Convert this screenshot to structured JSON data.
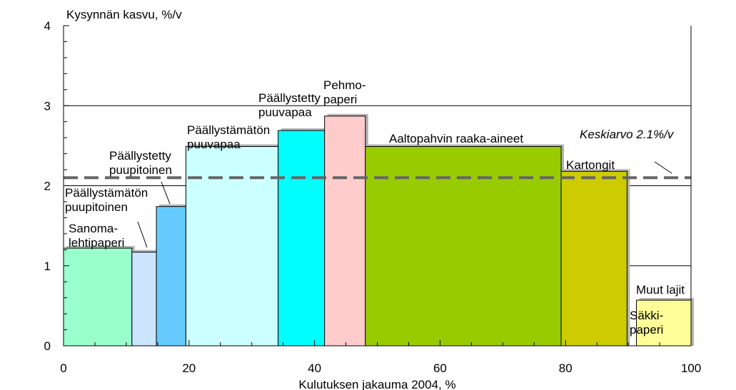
{
  "chart_data": {
    "type": "bar",
    "subtype": "variable-width-bar",
    "title": "",
    "ylabel": "Kysynnän kasvu, %/v",
    "xlabel": "Kulutuksen jakauma 2004, %",
    "xlim": [
      0,
      100
    ],
    "ylim": [
      0,
      4
    ],
    "xticks": [
      "0",
      "20",
      "40",
      "60",
      "80",
      "100"
    ],
    "yticks": [
      "0",
      "1",
      "2",
      "3",
      "4"
    ],
    "gridlines_y": [
      1,
      2,
      3
    ],
    "bars": [
      {
        "label": "Sanoma-\nlehtipaperi",
        "x0": 0,
        "x1": 10.9,
        "value": 1.22,
        "color": "#99ffcc"
      },
      {
        "label": "Päällystämätön\npuupitoinen",
        "x0": 10.9,
        "x1": 14.8,
        "value": 1.17,
        "color": "#cce5ff"
      },
      {
        "label": "Päällystetty\npuupitoinen",
        "x0": 14.8,
        "x1": 19.5,
        "value": 1.74,
        "color": "#66ccff"
      },
      {
        "label": "Päällystämätön\npuuvapaa",
        "x0": 19.5,
        "x1": 34.2,
        "value": 2.49,
        "color": "#ccffff"
      },
      {
        "label": "Päällystetty\npuuvapaa",
        "x0": 34.2,
        "x1": 41.6,
        "value": 2.69,
        "color": "#00ffff"
      },
      {
        "label": "Pehmo-\npaperi",
        "x0": 41.6,
        "x1": 48.1,
        "value": 2.87,
        "color": "#ffcccc"
      },
      {
        "label": "Aaltopahvin raaka-aineet",
        "x0": 48.1,
        "x1": 79.3,
        "value": 2.49,
        "color": "#99cc00"
      },
      {
        "label": "Kartongit",
        "x0": 79.3,
        "x1": 89.8,
        "value": 2.18,
        "color": "#cccc00"
      },
      {
        "label": "Säkki-\npaperi",
        "x0": 89.8,
        "x1": 91.3,
        "value": 0,
        "color": "#ffffff"
      },
      {
        "label": "Muut lajit",
        "x0": 91.3,
        "x1": 100,
        "value": 0.57,
        "color": "#ffff99"
      }
    ],
    "average": {
      "value": 2.1,
      "label": "Keskiarvo 2.1%/v",
      "color": "#666666",
      "style": "dashed"
    }
  }
}
